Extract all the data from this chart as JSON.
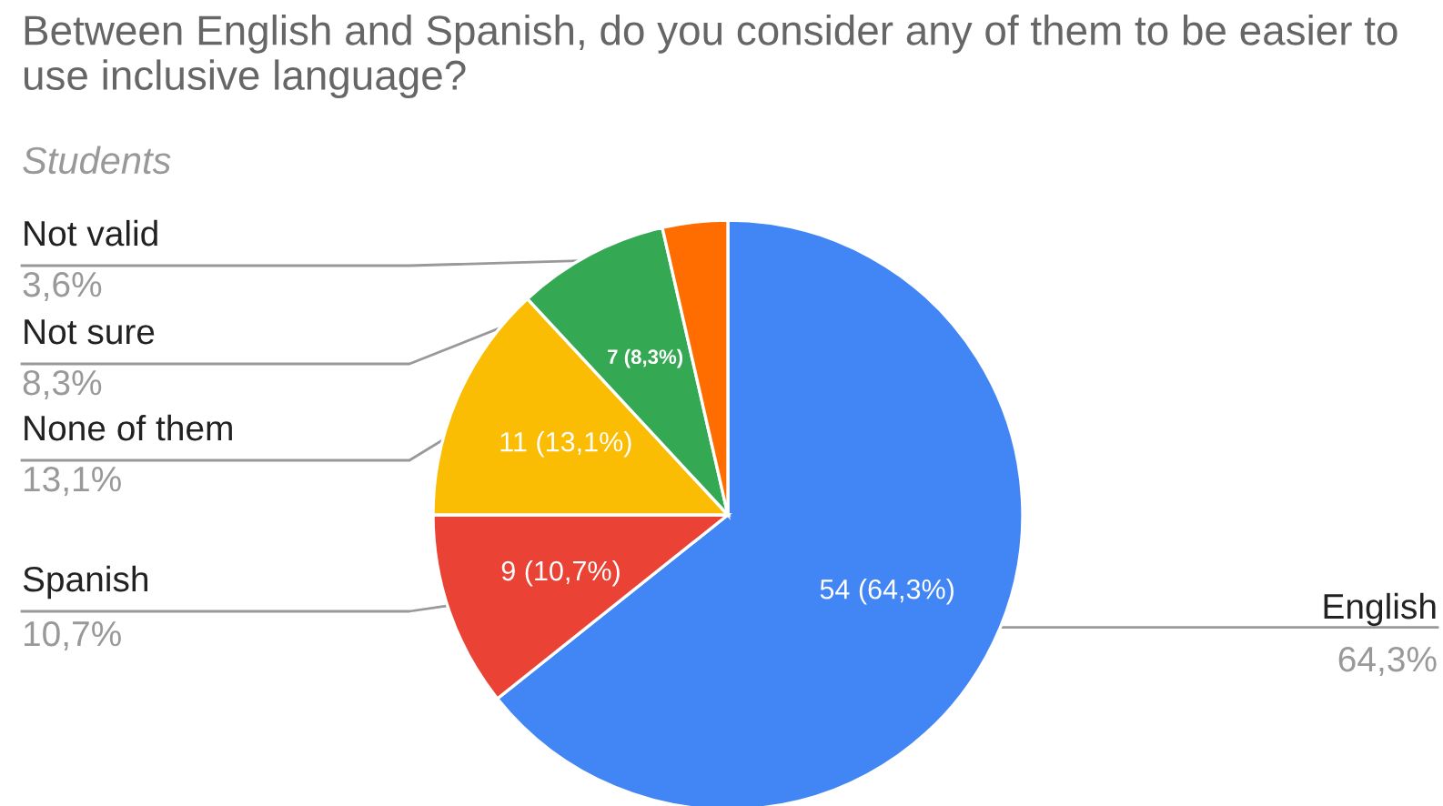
{
  "chart_data": {
    "type": "pie",
    "title": "Between English and Spanish, do you consider any of them to be easier to use inclusive language?",
    "subtitle": "Students",
    "categories": [
      "English",
      "Spanish",
      "None of them",
      "Not sure",
      "Not valid"
    ],
    "values": [
      54,
      9,
      11,
      7,
      3
    ],
    "colors": [
      "#4285f4",
      "#ea4335",
      "#fbbc04",
      "#34a853",
      "#ff6d01"
    ],
    "value_labels": [
      "54 (64,3%)",
      "9 (10,7%)",
      "11 (13,1%)",
      "7 (8,3%)",
      null
    ],
    "annotations": [
      {
        "text": "64,3%",
        "x": "English"
      },
      {
        "text": "10,7%",
        "x": "Spanish"
      },
      {
        "text": "13,1%",
        "x": "None of them"
      },
      {
        "text": "8,3%",
        "x": "Not sure"
      },
      {
        "text": "3,6%",
        "x": "Not valid"
      }
    ]
  }
}
